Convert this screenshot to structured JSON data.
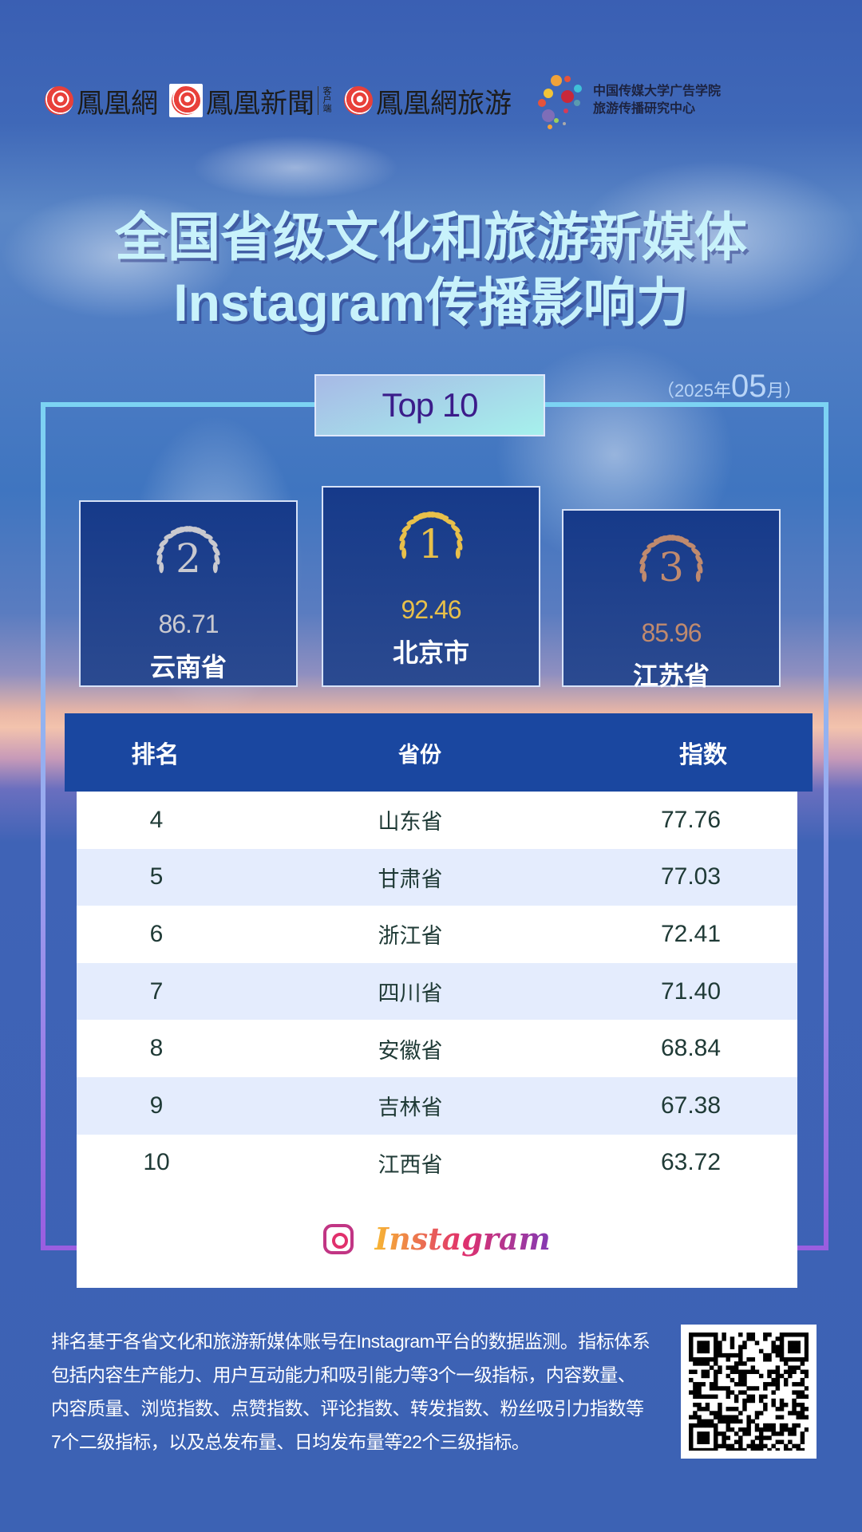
{
  "header": {
    "logos": [
      {
        "text": "鳳凰網",
        "icon": "ifeng-swirl-icon"
      },
      {
        "text": "鳳凰新聞",
        "sub": "客户端",
        "icon": "ifeng-news-icon"
      },
      {
        "text": "鳳凰網旅游",
        "icon": "ifeng-swirl-icon"
      }
    ],
    "partner_line1": "中国传媒大学广告学院",
    "partner_line2": "旅游传播研究中心"
  },
  "title": {
    "line1": "全国省级文化和旅游新媒体",
    "line2": "Instagram传播影响力"
  },
  "date": {
    "open": "（",
    "year": "2025年",
    "month": "05",
    "month_suffix": "月",
    "close": "）"
  },
  "badge": "Top 10",
  "podium": [
    {
      "rank": "2",
      "score": "86.71",
      "name": "云南省",
      "color": "#c9c9cf"
    },
    {
      "rank": "1",
      "score": "92.46",
      "name": "北京市",
      "color": "#e8c04a"
    },
    {
      "rank": "3",
      "score": "85.96",
      "name": "江苏省",
      "color": "#c08a6e"
    }
  ],
  "table": {
    "headers": [
      "排名",
      "省份",
      "指数"
    ],
    "rows": [
      [
        "4",
        "山东省",
        "77.76"
      ],
      [
        "5",
        "甘肃省",
        "77.03"
      ],
      [
        "6",
        "浙江省",
        "72.41"
      ],
      [
        "7",
        "四川省",
        "71.40"
      ],
      [
        "8",
        "安徽省",
        "68.84"
      ],
      [
        "9",
        "吉林省",
        "67.38"
      ],
      [
        "10",
        "江西省",
        "63.72"
      ]
    ]
  },
  "platform": "Instagram",
  "note": "排名基于各省文化和旅游新媒体账号在Instagram平台的数据监测。指标体系包括内容生产能力、用户互动能力和吸引能力等3个一级指标，内容数量、内容质量、浏览指数、点赞指数、评论指数、转发指数、粉丝吸引力指数等7个二级指标，以及总发布量、日均发布量等22个三级指标。",
  "colors": {
    "header_bg": "#1a47a0",
    "alt_row": "#e4ecfd",
    "page_bg": "#3c62b4"
  }
}
